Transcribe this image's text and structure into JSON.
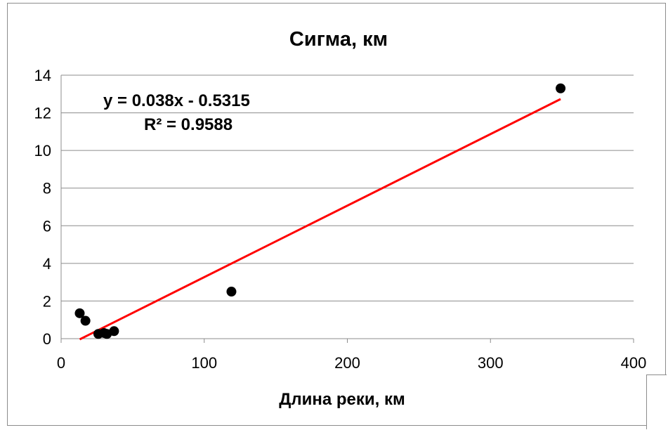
{
  "chart_data": {
    "type": "scatter",
    "title": "Сигма, км",
    "xlabel": "Длина реки, км",
    "ylabel": "",
    "xlim": [
      0,
      400
    ],
    "ylim": [
      0,
      14
    ],
    "xticks": [
      0,
      100,
      200,
      300,
      400
    ],
    "yticks": [
      0,
      2,
      4,
      6,
      8,
      10,
      12,
      14
    ],
    "grid": "horizontal",
    "legend": "none",
    "series": [
      {
        "points": [
          {
            "x": 13,
            "y": 1.35
          },
          {
            "x": 17,
            "y": 0.95
          },
          {
            "x": 26,
            "y": 0.25
          },
          {
            "x": 30,
            "y": 0.3
          },
          {
            "x": 32,
            "y": 0.25
          },
          {
            "x": 37,
            "y": 0.4
          },
          {
            "x": 119,
            "y": 2.5
          },
          {
            "x": 349,
            "y": 13.3
          }
        ],
        "color": "#000000"
      }
    ],
    "trendline": {
      "type": "linear",
      "slope": 0.038,
      "intercept": -0.5315,
      "x_range": [
        13,
        349
      ],
      "color": "#ff0000"
    },
    "annotations": {
      "equation": "y = 0.038x - 0.5315",
      "r_squared": "R² = 0.9588"
    }
  }
}
